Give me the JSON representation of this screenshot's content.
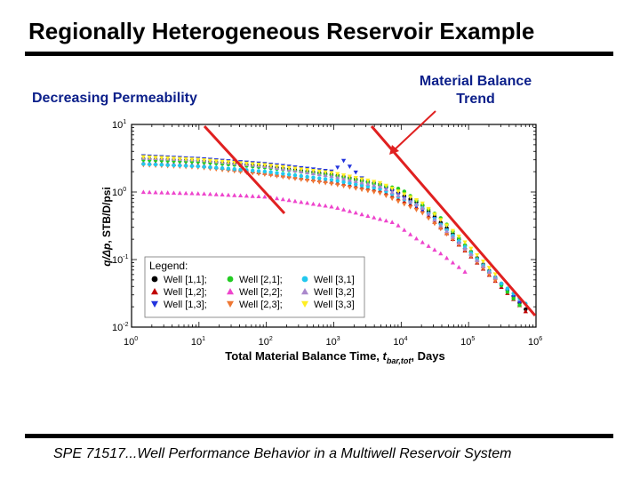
{
  "slide": {
    "title": "Regionally Heterogeneous Reservoir Example",
    "annotation_left": "Decreasing Permeability",
    "annotation_right_line1": "Material Balance",
    "annotation_right_line2": "Trend",
    "footer": "SPE 71517...Well Performance Behavior in a Multiwell Reservoir System"
  },
  "colors": {
    "annotation_text": "#0b1f8a",
    "trend_line": "#e02020"
  },
  "chart_data": {
    "type": "scatter",
    "x_scale": "log",
    "y_scale": "log",
    "xlim": [
      1,
      1000000
    ],
    "ylim": [
      0.01,
      10
    ],
    "x_ticks": [
      {
        "base": "10",
        "exp": "0"
      },
      {
        "base": "10",
        "exp": "1"
      },
      {
        "base": "10",
        "exp": "2"
      },
      {
        "base": "10",
        "exp": "3"
      },
      {
        "base": "10",
        "exp": "4"
      },
      {
        "base": "10",
        "exp": "5"
      },
      {
        "base": "10",
        "exp": "6"
      }
    ],
    "y_ticks": [
      {
        "base": "10",
        "exp": "1"
      },
      {
        "base": "10",
        "exp": "0"
      },
      {
        "base": "10",
        "exp": "-1"
      },
      {
        "base": "10",
        "exp": "-2"
      }
    ],
    "xlabel": {
      "main": "Total Material Balance Time, ",
      "var": "t",
      "sub": "bar,tot",
      "suffix": ", Days"
    },
    "ylabel": {
      "var": "q/Δp",
      "suffix": ", STB/D/psi"
    },
    "legend": {
      "title": "Legend:",
      "position": "bottom-left",
      "entries": [
        {
          "label": "Well [1,1];",
          "color": "#000000",
          "marker": "circle"
        },
        {
          "label": "Well [1,2];",
          "color": "#c00000",
          "marker": "triangle-up"
        },
        {
          "label": "Well [1,3];",
          "color": "#2233dd",
          "marker": "triangle-down"
        },
        {
          "label": "Well [2,1];",
          "color": "#22cc22",
          "marker": "circle"
        },
        {
          "label": "Well [2,2];",
          "color": "#ee44cc",
          "marker": "triangle-up"
        },
        {
          "label": "Well [2,3];",
          "color": "#ee7733",
          "marker": "triangle-down"
        },
        {
          "label": "Well [3,1]",
          "color": "#22c8ee",
          "marker": "circle"
        },
        {
          "label": "Well [3,2]",
          "color": "#aa88cc",
          "marker": "triangle-up"
        },
        {
          "label": "Well [3,3]",
          "color": "#ffee22",
          "marker": "triangle-down"
        }
      ]
    },
    "series": [
      {
        "name": "Well [1,1];",
        "color": "#000000",
        "marker": "circle",
        "x": [
          1.5,
          10,
          100,
          1000,
          5000,
          20000,
          80000,
          300000,
          800000
        ],
        "y": [
          3.1,
          2.9,
          2.4,
          1.8,
          1.3,
          0.65,
          0.18,
          0.045,
          0.016
        ]
      },
      {
        "name": "Well [1,2];",
        "color": "#c00000",
        "marker": "triangle-up",
        "x": [
          1.5,
          10,
          100,
          1000,
          5000,
          20000,
          80000,
          300000,
          800000
        ],
        "y": [
          2.7,
          2.5,
          1.9,
          1.4,
          1.05,
          0.55,
          0.15,
          0.04,
          0.015
        ]
      },
      {
        "name": "Well [1,3];",
        "color": "#2233dd",
        "marker": "triangle-down",
        "x": [
          1.5,
          10,
          100,
          1000,
          1400,
          3000,
          8000,
          30000,
          150000,
          600000
        ],
        "y": [
          3.4,
          3.1,
          2.6,
          2.0,
          2.9,
          1.4,
          1.0,
          0.42,
          0.08,
          0.022
        ]
      },
      {
        "name": "Well [2,1];",
        "color": "#22cc22",
        "marker": "circle",
        "x": [
          1.5,
          10,
          100,
          1000,
          3000,
          10000,
          40000,
          150000,
          600000
        ],
        "y": [
          3.0,
          2.8,
          2.3,
          1.75,
          1.4,
          1.1,
          0.4,
          0.09,
          0.02
        ]
      },
      {
        "name": "Well [2,2];",
        "color": "#ee44cc",
        "marker": "triangle-up",
        "x": [
          1.5,
          10,
          100,
          1000,
          3000,
          8000,
          15000,
          40000,
          100000
        ],
        "y": [
          1.0,
          0.95,
          0.85,
          0.6,
          0.45,
          0.35,
          0.22,
          0.12,
          0.06
        ]
      },
      {
        "name": "Well [2,3];",
        "color": "#ee7733",
        "marker": "triangle-down",
        "x": [
          1.5,
          10,
          100,
          1000,
          5000,
          20000,
          80000,
          300000
        ],
        "y": [
          2.5,
          2.3,
          1.8,
          1.3,
          0.95,
          0.5,
          0.15,
          0.04
        ]
      },
      {
        "name": "Well [3,1]",
        "color": "#22c8ee",
        "marker": "circle",
        "x": [
          1.5,
          10,
          100,
          1000,
          5000,
          20000,
          80000,
          300000,
          800000
        ],
        "y": [
          2.6,
          2.4,
          2.0,
          1.5,
          1.1,
          0.6,
          0.17,
          0.045,
          0.02
        ]
      },
      {
        "name": "Well [3,2]",
        "color": "#aa88cc",
        "marker": "triangle-up",
        "x": [
          1.5,
          10,
          100,
          1000,
          5000,
          20000,
          80000,
          300000
        ],
        "y": [
          3.2,
          3.0,
          2.4,
          1.7,
          1.2,
          0.6,
          0.16,
          0.045
        ]
      },
      {
        "name": "Well [3,3]",
        "color": "#ffee22",
        "marker": "triangle-down",
        "x": [
          1.5,
          10,
          100,
          1000,
          5000,
          20000,
          80000,
          300000
        ],
        "y": [
          3.3,
          3.0,
          2.5,
          1.9,
          1.35,
          0.7,
          0.2,
          0.05
        ]
      }
    ]
  }
}
